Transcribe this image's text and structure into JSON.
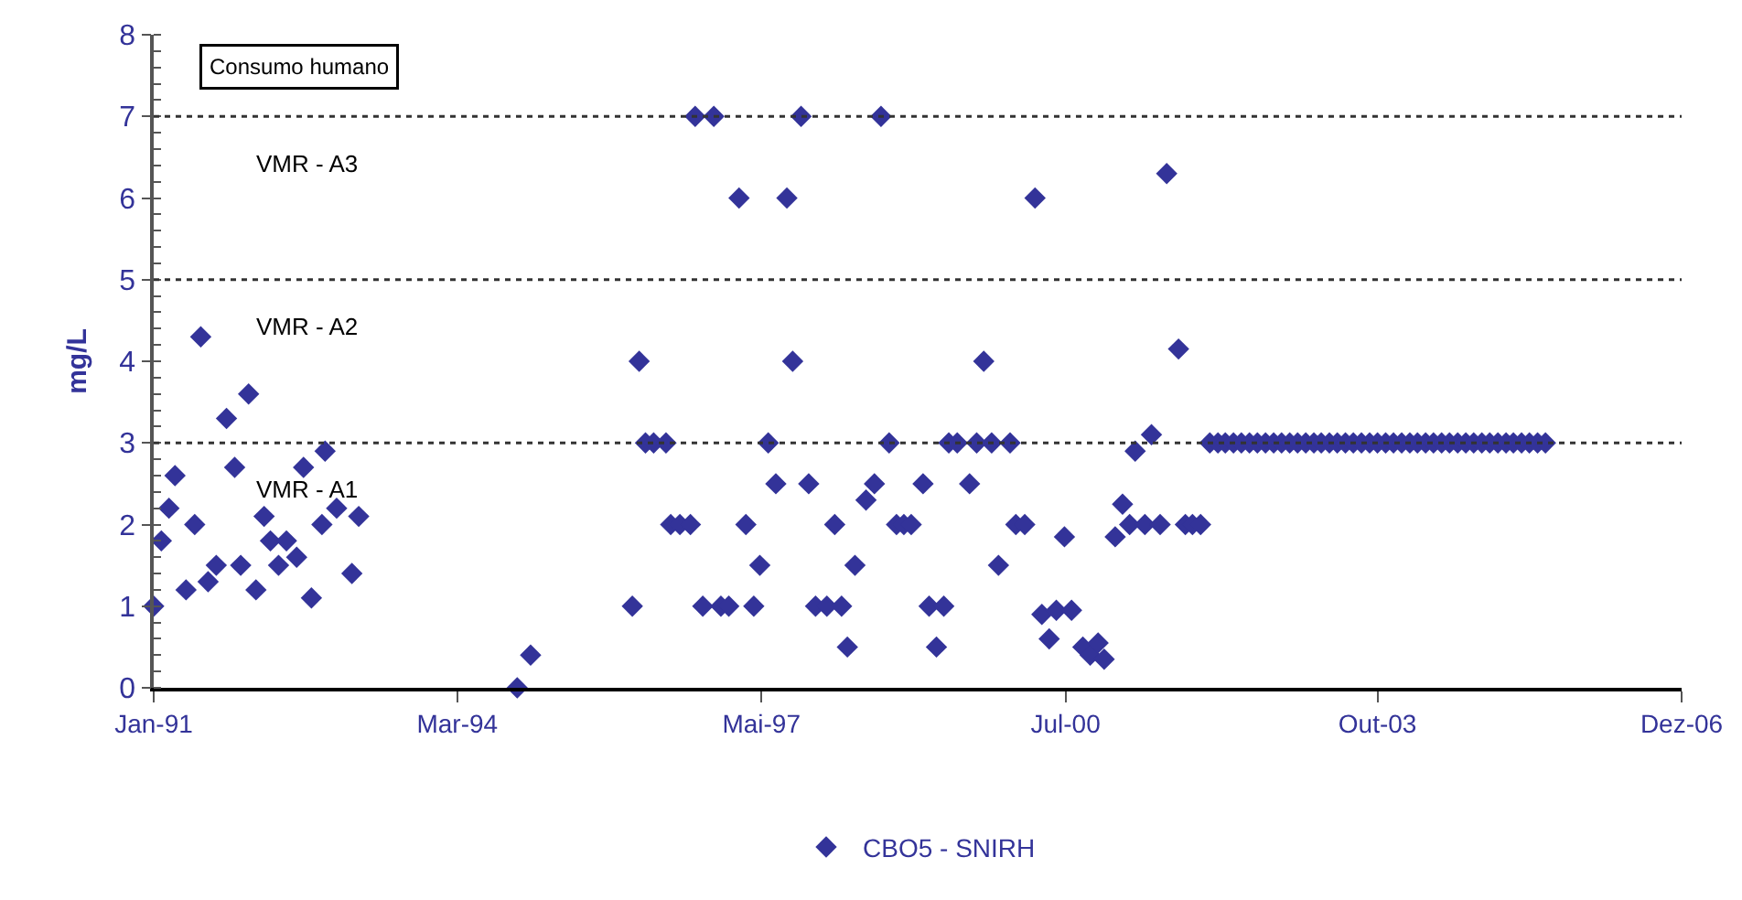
{
  "chart_data": {
    "type": "scatter",
    "ylabel": "mg/L",
    "marker": "diamond",
    "grid": false,
    "legend": "bottom",
    "annotations": [
      "Consumo humano"
    ],
    "xlim": [
      "1991-01-01",
      "2006-12-01"
    ],
    "xticks": [
      {
        "value": "1991-01-01",
        "label": "Jan-91"
      },
      {
        "value": "1994-03-01",
        "label": "Mar-94"
      },
      {
        "value": "1997-05-01",
        "label": "Mai-97"
      },
      {
        "value": "2000-07-01",
        "label": "Jul-00"
      },
      {
        "value": "2003-10-01",
        "label": "Out-03"
      },
      {
        "value": "2006-12-01",
        "label": "Dez-06"
      }
    ],
    "ylim": [
      0,
      8
    ],
    "yticks": [
      0,
      1,
      2,
      3,
      4,
      5,
      6,
      7,
      8
    ],
    "ref_lines": [
      {
        "axis": "y",
        "value": 3,
        "label": "VMR - A1",
        "line_style": "dotted",
        "color": "#333333"
      },
      {
        "axis": "y",
        "value": 5,
        "label": "VMR - A2",
        "line_style": "dotted",
        "color": "#333333"
      },
      {
        "axis": "y",
        "value": 7,
        "label": "VMR - A3",
        "line_style": "dotted",
        "color": "#333333"
      }
    ],
    "series": [
      {
        "name": "CBO5 - SNIRH",
        "color": "#333399",
        "x": [
          "1991-01-01",
          "1991-01-30",
          "1991-02-28",
          "1991-03-23",
          "1991-05-04",
          "1991-06-06",
          "1991-06-29",
          "1991-07-27",
          "1991-08-27",
          "1991-10-05",
          "1991-11-05",
          "1991-11-28",
          "1991-12-28",
          "1992-01-25",
          "1992-02-25",
          "1992-03-20",
          "1992-04-20",
          "1992-05-20",
          "1992-06-28",
          "1992-07-24",
          "1992-08-23",
          "1992-10-02",
          "1992-10-14",
          "1992-11-27",
          "1993-01-24",
          "1993-02-19",
          "1994-10-15",
          "1994-12-05",
          "1995-12-27",
          "1996-01-22",
          "1996-02-15",
          "1996-03-17",
          "1996-05-03",
          "1996-05-21",
          "1996-06-25",
          "1996-08-04",
          "1996-08-22",
          "1996-09-20",
          "1996-11-01",
          "1996-11-28",
          "1996-12-28",
          "1997-02-05",
          "1997-03-03",
          "1997-04-02",
          "1997-04-25",
          "1997-05-27",
          "1997-06-25",
          "1997-08-06",
          "1997-08-28",
          "1997-09-29",
          "1997-10-28",
          "1997-11-23",
          "1998-01-05",
          "1998-02-04",
          "1998-03-02",
          "1998-03-24",
          "1998-04-22",
          "1998-06-03",
          "1998-07-05",
          "1998-07-30",
          "1998-08-30",
          "1998-09-27",
          "1998-10-25",
          "1998-11-22",
          "1999-01-06",
          "1999-01-29",
          "1999-02-26",
          "1999-03-26",
          "1999-04-14",
          "1999-05-16",
          "1999-07-02",
          "1999-07-29",
          "1999-08-25",
          "1999-09-24",
          "1999-10-20",
          "1999-12-03",
          "1999-12-25",
          "2000-01-28",
          "2000-03-07",
          "2000-04-02",
          "2000-04-30",
          "2000-05-27",
          "2000-06-27",
          "2000-07-24",
          "2000-09-05",
          "2000-10-03",
          "2000-11-02",
          "2000-11-25",
          "2001-01-06",
          "2001-02-03",
          "2001-03-02",
          "2001-03-23",
          "2001-04-29",
          "2001-05-24",
          "2001-06-26",
          "2001-07-21",
          "2001-09-04",
          "2001-09-30",
          "2001-10-27",
          "2001-11-27",
          "2002-01-01",
          "2002-02-01",
          "2002-03-01",
          "2002-04-01",
          "2002-05-01",
          "2002-06-01",
          "2002-07-01",
          "2002-08-01",
          "2002-09-01",
          "2002-10-01",
          "2002-11-01",
          "2002-12-01",
          "2003-01-01",
          "2003-02-01",
          "2003-03-01",
          "2003-04-01",
          "2003-05-01",
          "2003-06-01",
          "2003-07-01",
          "2003-08-01",
          "2003-09-01",
          "2003-10-01",
          "2003-11-01",
          "2003-12-01",
          "2004-01-01",
          "2004-02-01",
          "2004-03-01",
          "2004-04-01",
          "2004-05-01",
          "2004-06-01",
          "2004-07-01",
          "2004-08-01",
          "2004-09-01",
          "2004-10-01",
          "2004-11-01",
          "2004-12-01",
          "2005-01-01",
          "2005-02-01",
          "2005-03-01",
          "2005-04-01",
          "2005-05-01",
          "2005-06-01",
          "2005-07-01"
        ],
        "values": [
          1.0,
          1.8,
          2.2,
          2.6,
          1.2,
          2.0,
          4.3,
          1.3,
          1.5,
          3.3,
          2.7,
          1.5,
          3.6,
          1.2,
          2.1,
          1.8,
          1.5,
          1.8,
          1.6,
          2.7,
          1.1,
          2.0,
          2.9,
          2.2,
          1.4,
          2.1,
          0.0,
          0.4,
          1.0,
          4.0,
          3.0,
          3.0,
          3.0,
          2.0,
          2.0,
          2.0,
          7.0,
          1.0,
          7.0,
          1.0,
          1.0,
          6.0,
          2.0,
          1.0,
          1.5,
          3.0,
          2.5,
          6.0,
          4.0,
          7.0,
          2.5,
          1.0,
          1.0,
          2.0,
          1.0,
          0.5,
          1.5,
          2.3,
          2.5,
          7.0,
          3.0,
          2.0,
          2.0,
          2.0,
          2.5,
          1.0,
          0.5,
          1.0,
          3.0,
          3.0,
          2.5,
          3.0,
          4.0,
          3.0,
          1.5,
          3.0,
          2.0,
          2.0,
          6.0,
          0.9,
          0.6,
          0.95,
          1.85,
          0.95,
          0.5,
          0.4,
          0.55,
          0.35,
          1.85,
          2.25,
          2.0,
          2.9,
          2.0,
          3.1,
          2.0,
          6.3,
          4.15,
          2.0,
          2.0,
          2.0,
          3,
          3,
          3,
          3,
          3,
          3,
          3,
          3,
          3,
          3,
          3,
          3,
          3,
          3,
          3,
          3,
          3,
          3,
          3,
          3,
          3,
          3,
          3,
          3,
          3,
          3,
          3,
          3,
          3,
          3,
          3,
          3,
          3,
          3,
          3,
          3,
          3,
          3,
          3,
          3,
          3,
          3,
          3
        ]
      }
    ]
  }
}
